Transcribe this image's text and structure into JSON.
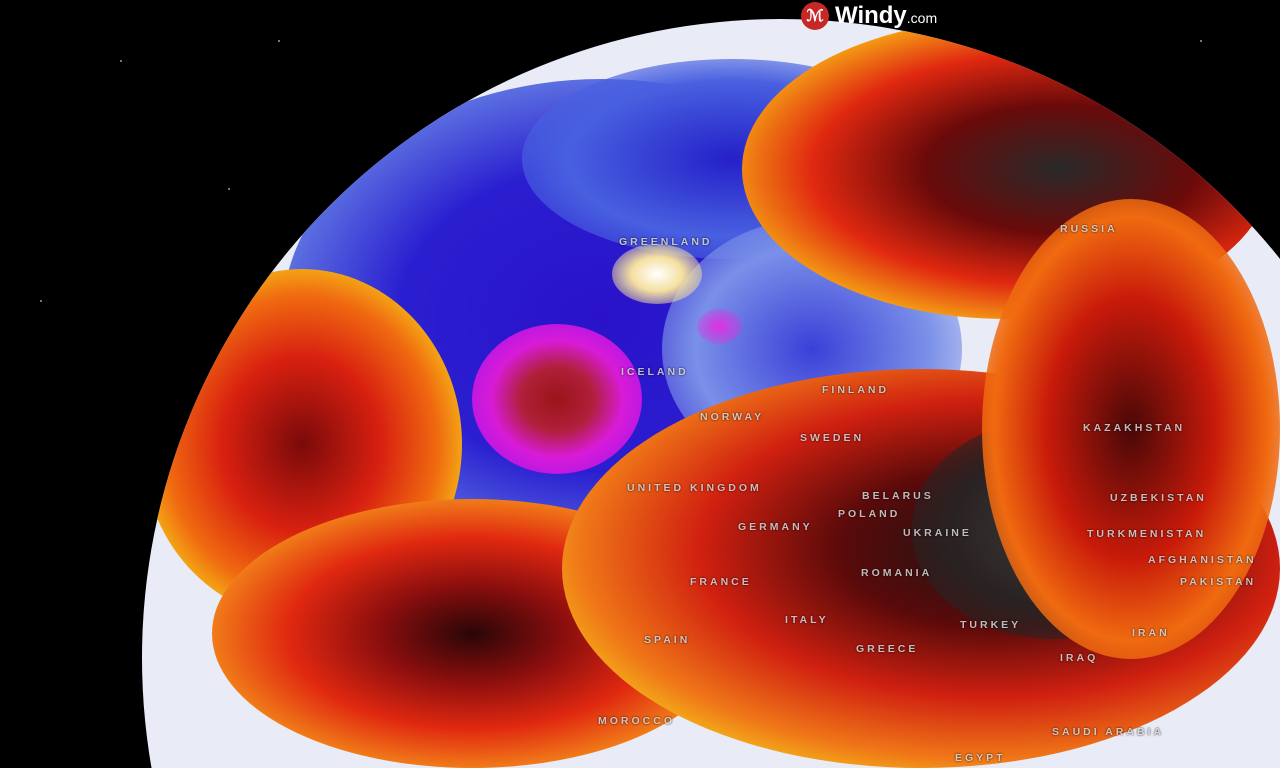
{
  "brand": {
    "name": "Windy",
    "suffix": ".com"
  },
  "colors": {
    "cold": "#2a1fd0",
    "very_cold": "#d81bd8",
    "neutral": "#e9ecf7",
    "warm": "#f5d41a",
    "hot": "#e8280e",
    "very_hot": "#3a3a3a"
  },
  "labels": [
    "GREENLAND",
    "ICELAND",
    "RUSSIA",
    "FINLAND",
    "NORWAY",
    "SWEDEN",
    "UNITED KINGDOM",
    "BELARUS",
    "POLAND",
    "GERMANY",
    "UKRAINE",
    "KAZAKHSTAN",
    "UZBEKISTAN",
    "TURKMENISTAN",
    "AFGHANISTAN",
    "PAKISTAN",
    "ROMANIA",
    "FRANCE",
    "ITALY",
    "SPAIN",
    "GREECE",
    "TURKEY",
    "IRAN",
    "IRAQ",
    "MOROCCO",
    "SAUDI ARABIA",
    "EGYPT"
  ]
}
